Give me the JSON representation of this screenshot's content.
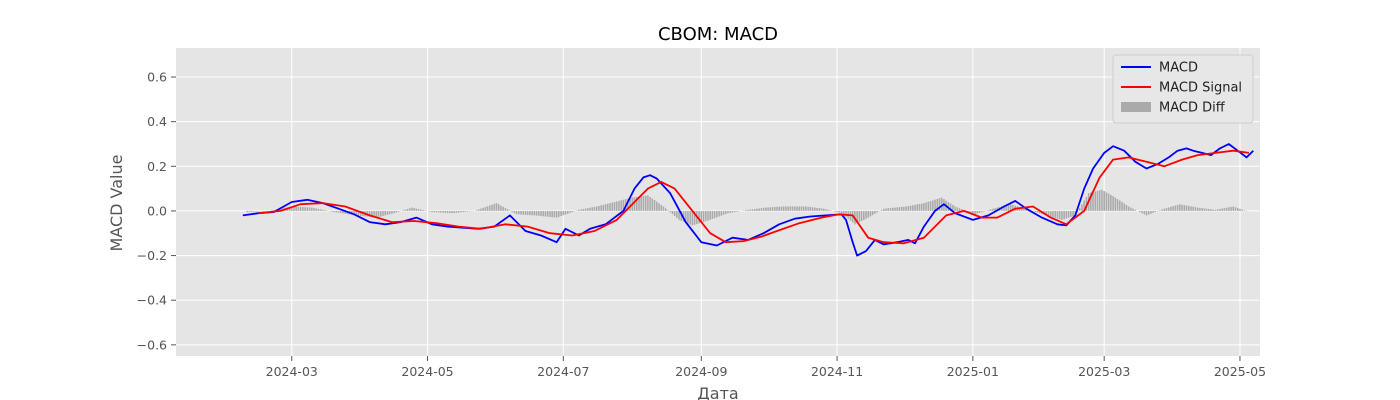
{
  "chart_data": {
    "type": "line",
    "title": "CBOM: MACD",
    "xlabel": "Дата",
    "ylabel": "MACD Value",
    "x_tick_labels": [
      "2024-03",
      "2024-05",
      "2024-07",
      "2024-09",
      "2024-11",
      "2025-01",
      "2025-03",
      "2025-05"
    ],
    "y_tick_labels": [
      "−0.6",
      "−0.4",
      "−0.2",
      "0.0",
      "0.2",
      "0.4",
      "0.6"
    ],
    "y_ticks": [
      -0.6,
      -0.4,
      -0.2,
      0.0,
      0.2,
      0.4,
      0.6
    ],
    "x_range": [
      "2024-01-09",
      "2025-05-10"
    ],
    "y_range": [
      -0.65,
      0.73
    ],
    "grid": true,
    "legend_position": "top-right",
    "background": "#e5e5e5",
    "series": [
      {
        "name": "MACD",
        "kind": "line",
        "color": "#0000ff",
        "points": [
          [
            "2024-02-08",
            -0.02
          ],
          [
            "2024-02-15",
            -0.01
          ],
          [
            "2024-02-22",
            -0.005
          ],
          [
            "2024-03-01",
            0.04
          ],
          [
            "2024-03-08",
            0.05
          ],
          [
            "2024-03-15",
            0.035
          ],
          [
            "2024-03-22",
            0.01
          ],
          [
            "2024-03-29",
            -0.015
          ],
          [
            "2024-04-05",
            -0.05
          ],
          [
            "2024-04-12",
            -0.06
          ],
          [
            "2024-04-19",
            -0.05
          ],
          [
            "2024-04-26",
            -0.03
          ],
          [
            "2024-05-03",
            -0.06
          ],
          [
            "2024-05-10",
            -0.07
          ],
          [
            "2024-05-17",
            -0.075
          ],
          [
            "2024-05-24",
            -0.08
          ],
          [
            "2024-05-31",
            -0.07
          ],
          [
            "2024-06-07",
            -0.02
          ],
          [
            "2024-06-14",
            -0.09
          ],
          [
            "2024-06-21",
            -0.11
          ],
          [
            "2024-06-28",
            -0.14
          ],
          [
            "2024-07-02",
            -0.08
          ],
          [
            "2024-07-08",
            -0.11
          ],
          [
            "2024-07-13",
            -0.08
          ],
          [
            "2024-07-20",
            -0.06
          ],
          [
            "2024-07-28",
            0.0
          ],
          [
            "2024-08-02",
            0.1
          ],
          [
            "2024-08-06",
            0.15
          ],
          [
            "2024-08-09",
            0.16
          ],
          [
            "2024-08-12",
            0.145
          ],
          [
            "2024-08-18",
            0.08
          ],
          [
            "2024-08-25",
            -0.05
          ],
          [
            "2024-09-01",
            -0.14
          ],
          [
            "2024-09-08",
            -0.155
          ],
          [
            "2024-09-15",
            -0.12
          ],
          [
            "2024-09-22",
            -0.13
          ],
          [
            "2024-09-29",
            -0.1
          ],
          [
            "2024-10-06",
            -0.06
          ],
          [
            "2024-10-13",
            -0.035
          ],
          [
            "2024-10-20",
            -0.025
          ],
          [
            "2024-10-27",
            -0.02
          ],
          [
            "2024-11-03",
            -0.015
          ],
          [
            "2024-11-05",
            -0.04
          ],
          [
            "2024-11-08",
            -0.14
          ],
          [
            "2024-11-10",
            -0.2
          ],
          [
            "2024-11-14",
            -0.18
          ],
          [
            "2024-11-18",
            -0.13
          ],
          [
            "2024-11-22",
            -0.15
          ],
          [
            "2024-11-28",
            -0.14
          ],
          [
            "2024-12-03",
            -0.13
          ],
          [
            "2024-12-06",
            -0.145
          ],
          [
            "2024-12-10",
            -0.07
          ],
          [
            "2024-12-15",
            0.0
          ],
          [
            "2024-12-19",
            0.03
          ],
          [
            "2024-12-24",
            -0.01
          ],
          [
            "2025-01-01",
            -0.04
          ],
          [
            "2025-01-08",
            -0.02
          ],
          [
            "2025-01-15",
            0.02
          ],
          [
            "2025-01-20",
            0.045
          ],
          [
            "2025-01-25",
            0.01
          ],
          [
            "2025-02-01",
            -0.03
          ],
          [
            "2025-02-08",
            -0.06
          ],
          [
            "2025-02-12",
            -0.065
          ],
          [
            "2025-02-16",
            -0.02
          ],
          [
            "2025-02-20",
            0.1
          ],
          [
            "2025-02-24",
            0.19
          ],
          [
            "2025-03-01",
            0.26
          ],
          [
            "2025-03-05",
            0.29
          ],
          [
            "2025-03-10",
            0.27
          ],
          [
            "2025-03-15",
            0.22
          ],
          [
            "2025-03-20",
            0.19
          ],
          [
            "2025-03-25",
            0.21
          ],
          [
            "2025-03-30",
            0.24
          ],
          [
            "2025-04-03",
            0.27
          ],
          [
            "2025-04-07",
            0.28
          ],
          [
            "2025-04-10",
            0.27
          ],
          [
            "2025-04-14",
            0.26
          ],
          [
            "2025-04-18",
            0.25
          ],
          [
            "2025-04-22",
            0.28
          ],
          [
            "2025-04-26",
            0.3
          ],
          [
            "2025-04-30",
            0.27
          ],
          [
            "2025-05-04",
            0.24
          ],
          [
            "2025-05-07",
            0.27
          ]
        ]
      },
      {
        "name": "MACD Signal",
        "kind": "line",
        "color": "#ff0000",
        "points": [
          [
            "2024-02-15",
            -0.01
          ],
          [
            "2024-02-25",
            0.0
          ],
          [
            "2024-03-05",
            0.03
          ],
          [
            "2024-03-15",
            0.035
          ],
          [
            "2024-03-25",
            0.02
          ],
          [
            "2024-04-05",
            -0.02
          ],
          [
            "2024-04-15",
            -0.05
          ],
          [
            "2024-04-25",
            -0.045
          ],
          [
            "2024-05-05",
            -0.055
          ],
          [
            "2024-05-15",
            -0.07
          ],
          [
            "2024-05-25",
            -0.08
          ],
          [
            "2024-06-05",
            -0.06
          ],
          [
            "2024-06-15",
            -0.07
          ],
          [
            "2024-06-25",
            -0.1
          ],
          [
            "2024-07-05",
            -0.11
          ],
          [
            "2024-07-15",
            -0.09
          ],
          [
            "2024-07-25",
            -0.04
          ],
          [
            "2024-08-01",
            0.03
          ],
          [
            "2024-08-08",
            0.1
          ],
          [
            "2024-08-14",
            0.13
          ],
          [
            "2024-08-20",
            0.1
          ],
          [
            "2024-08-28",
            0.0
          ],
          [
            "2024-09-05",
            -0.1
          ],
          [
            "2024-09-12",
            -0.14
          ],
          [
            "2024-09-20",
            -0.135
          ],
          [
            "2024-09-28",
            -0.115
          ],
          [
            "2024-10-05",
            -0.09
          ],
          [
            "2024-10-15",
            -0.055
          ],
          [
            "2024-10-25",
            -0.03
          ],
          [
            "2024-11-02",
            -0.015
          ],
          [
            "2024-11-08",
            -0.02
          ],
          [
            "2024-11-15",
            -0.12
          ],
          [
            "2024-11-22",
            -0.14
          ],
          [
            "2024-12-01",
            -0.145
          ],
          [
            "2024-12-10",
            -0.12
          ],
          [
            "2024-12-20",
            -0.02
          ],
          [
            "2024-12-28",
            0.0
          ],
          [
            "2025-01-05",
            -0.03
          ],
          [
            "2025-01-12",
            -0.03
          ],
          [
            "2025-01-20",
            0.01
          ],
          [
            "2025-01-28",
            0.02
          ],
          [
            "2025-02-05",
            -0.03
          ],
          [
            "2025-02-12",
            -0.06
          ],
          [
            "2025-02-20",
            0.0
          ],
          [
            "2025-02-27",
            0.15
          ],
          [
            "2025-03-05",
            0.23
          ],
          [
            "2025-03-12",
            0.24
          ],
          [
            "2025-03-20",
            0.22
          ],
          [
            "2025-03-28",
            0.2
          ],
          [
            "2025-04-05",
            0.23
          ],
          [
            "2025-04-12",
            0.25
          ],
          [
            "2025-04-20",
            0.26
          ],
          [
            "2025-04-28",
            0.27
          ],
          [
            "2025-05-05",
            0.26
          ]
        ]
      },
      {
        "name": "MACD Diff",
        "kind": "bar",
        "color": "#aaaaaa",
        "points": [
          [
            "2024-02-10",
            -0.005
          ],
          [
            "2024-02-20",
            0.0
          ],
          [
            "2024-03-01",
            0.02
          ],
          [
            "2024-03-10",
            0.015
          ],
          [
            "2024-03-20",
            -0.005
          ],
          [
            "2024-03-30",
            -0.02
          ],
          [
            "2024-04-08",
            -0.03
          ],
          [
            "2024-04-16",
            -0.01
          ],
          [
            "2024-04-24",
            0.015
          ],
          [
            "2024-05-03",
            -0.005
          ],
          [
            "2024-05-12",
            -0.01
          ],
          [
            "2024-05-22",
            0.0
          ],
          [
            "2024-06-01",
            0.035
          ],
          [
            "2024-06-10",
            -0.015
          ],
          [
            "2024-06-18",
            -0.02
          ],
          [
            "2024-06-28",
            -0.03
          ],
          [
            "2024-07-08",
            0.005
          ],
          [
            "2024-07-16",
            0.02
          ],
          [
            "2024-07-24",
            0.04
          ],
          [
            "2024-08-01",
            0.06
          ],
          [
            "2024-08-08",
            0.07
          ],
          [
            "2024-08-15",
            0.02
          ],
          [
            "2024-08-22",
            -0.04
          ],
          [
            "2024-08-28",
            -0.065
          ],
          [
            "2024-09-05",
            -0.04
          ],
          [
            "2024-09-13",
            -0.01
          ],
          [
            "2024-09-22",
            0.005
          ],
          [
            "2024-09-30",
            0.015
          ],
          [
            "2024-10-08",
            0.02
          ],
          [
            "2024-10-18",
            0.02
          ],
          [
            "2024-10-26",
            0.01
          ],
          [
            "2024-11-03",
            -0.01
          ],
          [
            "2024-11-09",
            -0.06
          ],
          [
            "2024-11-15",
            -0.03
          ],
          [
            "2024-11-22",
            0.01
          ],
          [
            "2024-12-02",
            0.02
          ],
          [
            "2024-12-10",
            0.035
          ],
          [
            "2024-12-18",
            0.06
          ],
          [
            "2024-12-24",
            0.02
          ],
          [
            "2025-01-02",
            -0.015
          ],
          [
            "2025-01-10",
            0.01
          ],
          [
            "2025-01-18",
            0.03
          ],
          [
            "2025-01-26",
            0.005
          ],
          [
            "2025-02-03",
            -0.02
          ],
          [
            "2025-02-10",
            -0.04
          ],
          [
            "2025-02-16",
            -0.02
          ],
          [
            "2025-02-22",
            0.08
          ],
          [
            "2025-02-28",
            0.095
          ],
          [
            "2025-03-06",
            0.06
          ],
          [
            "2025-03-12",
            0.02
          ],
          [
            "2025-03-20",
            -0.02
          ],
          [
            "2025-03-28",
            0.01
          ],
          [
            "2025-04-04",
            0.03
          ],
          [
            "2025-04-12",
            0.015
          ],
          [
            "2025-04-20",
            0.005
          ],
          [
            "2025-04-28",
            0.02
          ],
          [
            "2025-05-05",
            -0.005
          ]
        ]
      }
    ]
  }
}
